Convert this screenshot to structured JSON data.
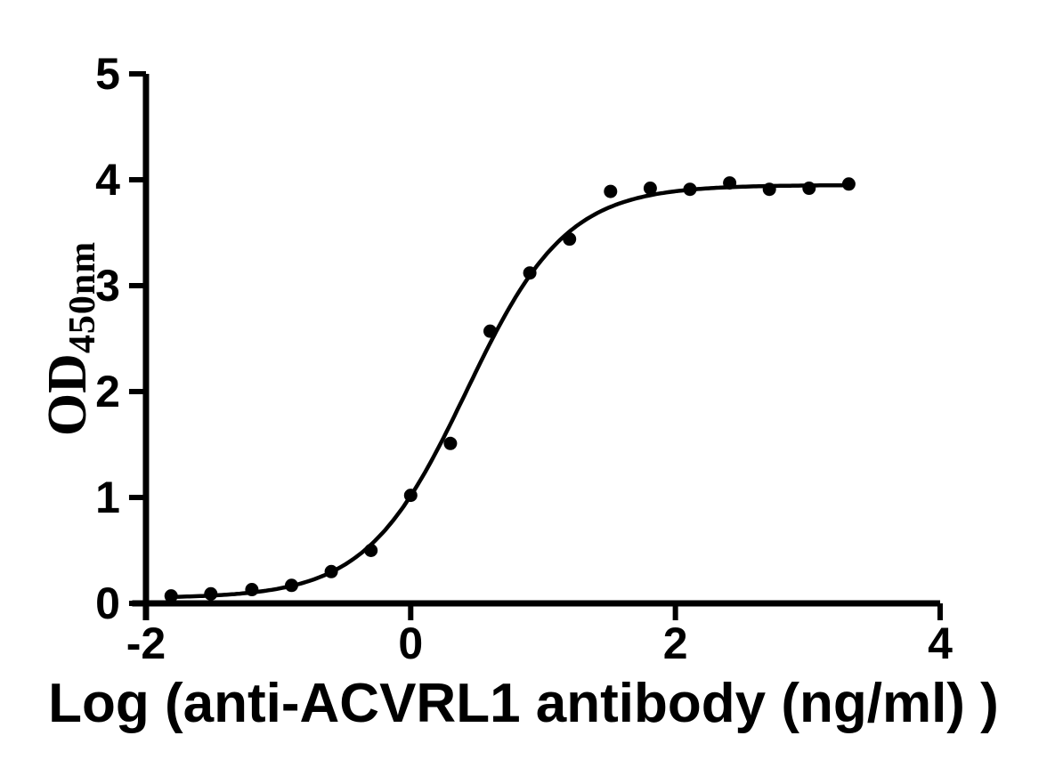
{
  "figure": {
    "background": "#ffffff",
    "ink_color": "#000000"
  },
  "chart_data": {
    "type": "scatter",
    "title": "",
    "xlabel": "Log (anti-ACVRL1 antibody (ng/ml) )",
    "ylabel": "OD",
    "ylabel_subscript": "450nm",
    "legend": "none",
    "grid": false,
    "xlim": [
      -2,
      4
    ],
    "ylim": [
      0,
      5
    ],
    "x_tick_labels": [
      "-2",
      "0",
      "2",
      "4"
    ],
    "x_tick_values": [
      -2,
      0,
      2,
      4
    ],
    "y_tick_labels": [
      "0",
      "1",
      "2",
      "3",
      "4",
      "5"
    ],
    "y_tick_values": [
      0,
      1,
      2,
      3,
      4,
      5
    ],
    "series": [
      {
        "name": "anti-ACVRL1 antibody",
        "marker": "filled-circle",
        "color": "#000000",
        "points": [
          {
            "x": -1.81,
            "y": 0.07
          },
          {
            "x": -1.51,
            "y": 0.09
          },
          {
            "x": -1.2,
            "y": 0.13
          },
          {
            "x": -0.9,
            "y": 0.17
          },
          {
            "x": -0.6,
            "y": 0.3
          },
          {
            "x": -0.3,
            "y": 0.5
          },
          {
            "x": 0.0,
            "y": 1.02
          },
          {
            "x": 0.3,
            "y": 1.51
          },
          {
            "x": 0.6,
            "y": 2.57
          },
          {
            "x": 0.9,
            "y": 3.12
          },
          {
            "x": 1.2,
            "y": 3.44
          },
          {
            "x": 1.51,
            "y": 3.89
          },
          {
            "x": 1.81,
            "y": 3.92
          },
          {
            "x": 2.11,
            "y": 3.91
          },
          {
            "x": 2.41,
            "y": 3.97
          },
          {
            "x": 2.71,
            "y": 3.91
          },
          {
            "x": 3.01,
            "y": 3.92
          },
          {
            "x": 3.31,
            "y": 3.96
          }
        ]
      }
    ],
    "fit_curve": {
      "model": "4PL sigmoid",
      "bottom": 0.05,
      "top": 3.95,
      "logEC50": 0.42,
      "hill_slope": 1.15,
      "x_start": -1.81,
      "x_end": 3.31,
      "color": "#000000"
    }
  }
}
